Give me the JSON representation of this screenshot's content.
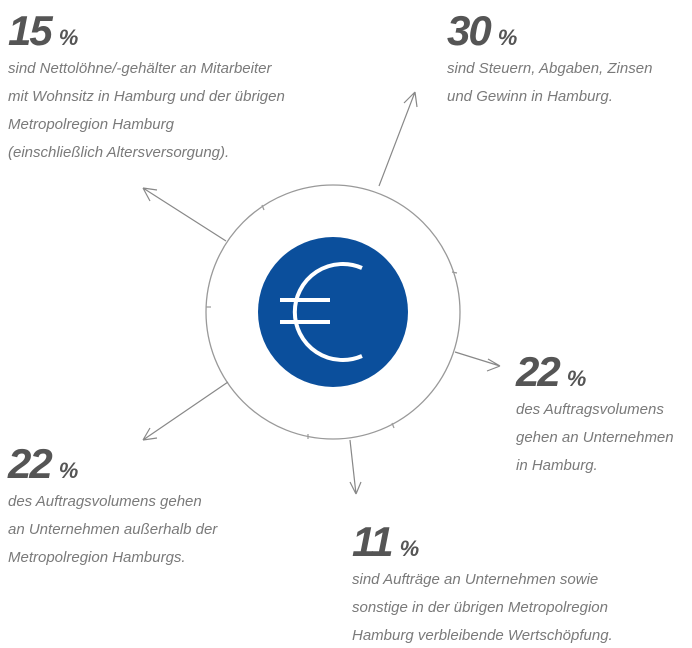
{
  "items": [
    {
      "value": 15,
      "unit": "%",
      "lines": [
        "sind Nettolöhne/-gehälter an Mitarbeiter",
        "mit Wohnsitz in Hamburg und der übrigen",
        "Metropolregion Hamburg",
        "(einschließlich Altersversorgung)."
      ]
    },
    {
      "value": 30,
      "unit": "%",
      "lines": [
        "sind Steuern, Abgaben, Zinsen",
        "und Gewinn in Hamburg."
      ]
    },
    {
      "value": 22,
      "unit": "%",
      "lines": [
        "des Auftragsvolumens",
        "gehen an Unternehmen",
        "in Hamburg."
      ]
    },
    {
      "value": 22,
      "unit": "%",
      "lines": [
        "des Auftragsvolumens gehen",
        "an Unternehmen außerhalb der",
        "Metropolregion Hamburgs."
      ]
    },
    {
      "value": 11,
      "unit": "%",
      "lines": [
        "sind Aufträge an Unternehmen sowie",
        "sonstige in der übrigen Metropolregion",
        "Hamburg verbleibende Wertschöpfung."
      ]
    }
  ]
}
